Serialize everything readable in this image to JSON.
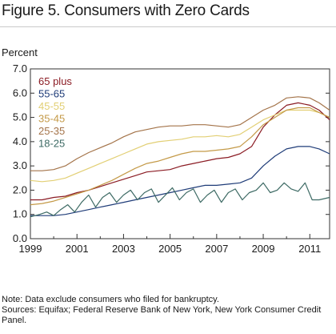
{
  "chart_data": {
    "type": "line",
    "title": "Figure 5. Consumers with Zero Cards",
    "ylabel": "Percent",
    "xlim": [
      1999,
      2011.85
    ],
    "ylim": [
      0,
      7
    ],
    "grid": false,
    "legend_position": "top-left",
    "x_ticks": [
      {
        "value": 1999,
        "label": "1999"
      },
      {
        "value": 2001,
        "label": "2001"
      },
      {
        "value": 2003,
        "label": "2003"
      },
      {
        "value": 2005,
        "label": "2005"
      },
      {
        "value": 2007,
        "label": "2007"
      },
      {
        "value": 2009,
        "label": "2009"
      },
      {
        "value": 2011,
        "label": "2011"
      }
    ],
    "y_ticks": [
      {
        "value": 0,
        "label": "0.0"
      },
      {
        "value": 1,
        "label": "1.0"
      },
      {
        "value": 2,
        "label": "2.0"
      },
      {
        "value": 3,
        "label": "3.0"
      },
      {
        "value": 4,
        "label": "4.0"
      },
      {
        "value": 5,
        "label": "5.0"
      },
      {
        "value": 6,
        "label": "6.0"
      },
      {
        "value": 7,
        "label": "7.0"
      }
    ],
    "series": [
      {
        "name": "65 plus",
        "color": "#8b1c24",
        "points": [
          [
            1999,
            1.6
          ],
          [
            1999.5,
            1.6
          ],
          [
            2000,
            1.7
          ],
          [
            2000.5,
            1.75
          ],
          [
            2001,
            1.9
          ],
          [
            2001.5,
            2.0
          ],
          [
            2002,
            2.15
          ],
          [
            2002.5,
            2.3
          ],
          [
            2003,
            2.45
          ],
          [
            2003.5,
            2.6
          ],
          [
            2004,
            2.75
          ],
          [
            2004.5,
            2.8
          ],
          [
            2005,
            2.85
          ],
          [
            2005.5,
            3.0
          ],
          [
            2006,
            3.1
          ],
          [
            2006.5,
            3.2
          ],
          [
            2007,
            3.3
          ],
          [
            2007.5,
            3.35
          ],
          [
            2008,
            3.5
          ],
          [
            2008.5,
            3.8
          ],
          [
            2009,
            4.6
          ],
          [
            2009.5,
            5.1
          ],
          [
            2010,
            5.5
          ],
          [
            2010.5,
            5.6
          ],
          [
            2011,
            5.5
          ],
          [
            2011.4,
            5.3
          ],
          [
            2011.85,
            4.9
          ]
        ]
      },
      {
        "name": "55-65",
        "color": "#1f3c78",
        "points": [
          [
            1999,
            0.95
          ],
          [
            1999.5,
            0.95
          ],
          [
            2000,
            0.95
          ],
          [
            2000.5,
            1.0
          ],
          [
            2001,
            1.1
          ],
          [
            2001.5,
            1.2
          ],
          [
            2002,
            1.3
          ],
          [
            2002.5,
            1.4
          ],
          [
            2003,
            1.5
          ],
          [
            2003.5,
            1.6
          ],
          [
            2004,
            1.7
          ],
          [
            2004.5,
            1.8
          ],
          [
            2005,
            1.9
          ],
          [
            2005.5,
            2.0
          ],
          [
            2006,
            2.1
          ],
          [
            2006.5,
            2.2
          ],
          [
            2007,
            2.2
          ],
          [
            2007.5,
            2.25
          ],
          [
            2008,
            2.3
          ],
          [
            2008.5,
            2.5
          ],
          [
            2009,
            3.0
          ],
          [
            2009.5,
            3.4
          ],
          [
            2010,
            3.7
          ],
          [
            2010.5,
            3.8
          ],
          [
            2011,
            3.8
          ],
          [
            2011.4,
            3.7
          ],
          [
            2011.85,
            3.5
          ]
        ]
      },
      {
        "name": "45-55",
        "color": "#e2cf74",
        "points": [
          [
            1999,
            2.4
          ],
          [
            1999.5,
            2.35
          ],
          [
            2000,
            2.4
          ],
          [
            2000.5,
            2.5
          ],
          [
            2001,
            2.7
          ],
          [
            2001.5,
            2.9
          ],
          [
            2002,
            3.1
          ],
          [
            2002.5,
            3.3
          ],
          [
            2003,
            3.5
          ],
          [
            2003.5,
            3.7
          ],
          [
            2004,
            3.9
          ],
          [
            2004.5,
            4.0
          ],
          [
            2005,
            4.05
          ],
          [
            2005.5,
            4.1
          ],
          [
            2006,
            4.2
          ],
          [
            2006.5,
            4.2
          ],
          [
            2007,
            4.25
          ],
          [
            2007.5,
            4.2
          ],
          [
            2008,
            4.3
          ],
          [
            2008.5,
            4.6
          ],
          [
            2009,
            4.9
          ],
          [
            2009.5,
            5.1
          ],
          [
            2010,
            5.3
          ],
          [
            2010.5,
            5.3
          ],
          [
            2011,
            5.3
          ],
          [
            2011.4,
            5.2
          ],
          [
            2011.85,
            5.0
          ]
        ]
      },
      {
        "name": "35-45",
        "color": "#c49a48",
        "points": [
          [
            1999,
            1.4
          ],
          [
            1999.5,
            1.45
          ],
          [
            2000,
            1.55
          ],
          [
            2000.5,
            1.7
          ],
          [
            2001,
            1.85
          ],
          [
            2001.5,
            2.0
          ],
          [
            2002,
            2.2
          ],
          [
            2002.5,
            2.4
          ],
          [
            2003,
            2.65
          ],
          [
            2003.5,
            2.9
          ],
          [
            2004,
            3.1
          ],
          [
            2004.5,
            3.2
          ],
          [
            2005,
            3.35
          ],
          [
            2005.5,
            3.5
          ],
          [
            2006,
            3.6
          ],
          [
            2006.5,
            3.6
          ],
          [
            2007,
            3.65
          ],
          [
            2007.5,
            3.7
          ],
          [
            2008,
            3.8
          ],
          [
            2008.5,
            4.2
          ],
          [
            2009,
            4.7
          ],
          [
            2009.5,
            5.0
          ],
          [
            2010,
            5.3
          ],
          [
            2010.5,
            5.4
          ],
          [
            2011,
            5.4
          ],
          [
            2011.4,
            5.2
          ],
          [
            2011.85,
            5.0
          ]
        ]
      },
      {
        "name": "25-35",
        "color": "#a4744a",
        "points": [
          [
            1999,
            2.8
          ],
          [
            1999.5,
            2.8
          ],
          [
            2000,
            2.85
          ],
          [
            2000.5,
            3.0
          ],
          [
            2001,
            3.3
          ],
          [
            2001.5,
            3.55
          ],
          [
            2002,
            3.75
          ],
          [
            2002.5,
            3.95
          ],
          [
            2003,
            4.2
          ],
          [
            2003.5,
            4.4
          ],
          [
            2004,
            4.5
          ],
          [
            2004.5,
            4.6
          ],
          [
            2005,
            4.65
          ],
          [
            2005.5,
            4.65
          ],
          [
            2006,
            4.7
          ],
          [
            2006.5,
            4.7
          ],
          [
            2007,
            4.65
          ],
          [
            2007.5,
            4.6
          ],
          [
            2008,
            4.7
          ],
          [
            2008.5,
            5.0
          ],
          [
            2009,
            5.3
          ],
          [
            2009.5,
            5.5
          ],
          [
            2010,
            5.8
          ],
          [
            2010.5,
            5.85
          ],
          [
            2011,
            5.8
          ],
          [
            2011.4,
            5.6
          ],
          [
            2011.85,
            5.3
          ]
        ]
      },
      {
        "name": "18-25",
        "color": "#3d6a64",
        "points": [
          [
            1999,
            0.9
          ],
          [
            1999.4,
            1.0
          ],
          [
            1999.7,
            1.1
          ],
          [
            2000,
            0.95
          ],
          [
            2000.3,
            1.2
          ],
          [
            2000.6,
            1.4
          ],
          [
            2000.9,
            1.1
          ],
          [
            2001.2,
            1.5
          ],
          [
            2001.5,
            1.8
          ],
          [
            2001.8,
            1.3
          ],
          [
            2002.1,
            1.7
          ],
          [
            2002.4,
            1.9
          ],
          [
            2002.7,
            1.5
          ],
          [
            2003,
            1.8
          ],
          [
            2003.3,
            2.0
          ],
          [
            2003.6,
            1.6
          ],
          [
            2003.9,
            1.9
          ],
          [
            2004.2,
            2.05
          ],
          [
            2004.5,
            1.5
          ],
          [
            2004.8,
            1.8
          ],
          [
            2005.1,
            2.1
          ],
          [
            2005.4,
            1.6
          ],
          [
            2005.7,
            1.9
          ],
          [
            2006,
            2.05
          ],
          [
            2006.3,
            1.5
          ],
          [
            2006.6,
            1.8
          ],
          [
            2006.9,
            2.0
          ],
          [
            2007.2,
            1.5
          ],
          [
            2007.5,
            1.9
          ],
          [
            2007.8,
            2.05
          ],
          [
            2008.1,
            1.6
          ],
          [
            2008.4,
            1.9
          ],
          [
            2008.7,
            2.0
          ],
          [
            2009,
            2.3
          ],
          [
            2009.3,
            1.9
          ],
          [
            2009.6,
            2.0
          ],
          [
            2009.9,
            2.3
          ],
          [
            2010.2,
            2.05
          ],
          [
            2010.5,
            1.95
          ],
          [
            2010.8,
            2.3
          ],
          [
            2011.1,
            1.6
          ],
          [
            2011.4,
            1.6
          ],
          [
            2011.85,
            1.7
          ]
        ]
      }
    ]
  },
  "notes": [
    "Note: Data exclude consumers who filed for bankruptcy.",
    "Sources: Equifax; Federal Reserve Bank of New York, New York Consumer Credit Panel."
  ]
}
